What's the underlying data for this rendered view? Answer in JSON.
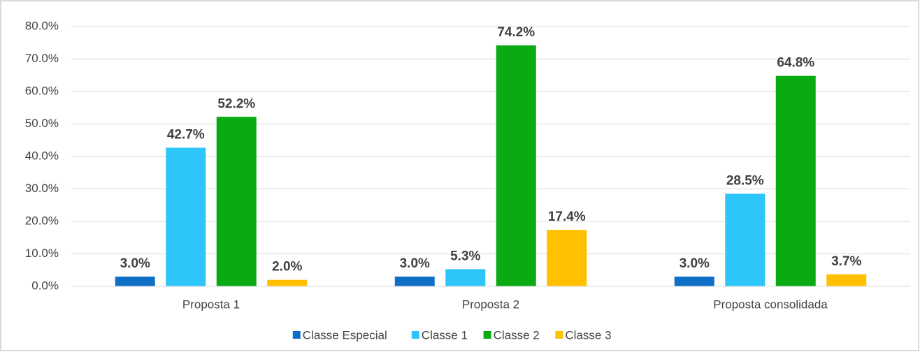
{
  "chart_data": {
    "type": "bar",
    "categories": [
      "Proposta 1",
      "Proposta 2",
      "Proposta consolidada"
    ],
    "series": [
      {
        "name": "Classe Especial",
        "color": "#0f6fc6",
        "values": [
          3.0,
          3.0,
          3.0
        ],
        "value_labels": [
          "3.0%",
          "3.0%",
          "3.0%"
        ]
      },
      {
        "name": "Classe 1",
        "color": "#2ec5fb",
        "values": [
          42.7,
          5.3,
          28.5
        ],
        "value_labels": [
          "42.7%",
          "5.3%",
          "28.5%"
        ]
      },
      {
        "name": "Classe 2",
        "color": "#0aaa12",
        "values": [
          52.2,
          74.2,
          64.8
        ],
        "value_labels": [
          "52.2%",
          "74.2%",
          "64.8%"
        ]
      },
      {
        "name": "Classe 3",
        "color": "#ffc000",
        "values": [
          2.0,
          17.4,
          3.7
        ],
        "value_labels": [
          "2.0%",
          "17.4%",
          "3.7%"
        ]
      }
    ],
    "ylim": [
      0,
      80
    ],
    "yticks": [
      {
        "value": 0,
        "label": "0.0%"
      },
      {
        "value": 10,
        "label": "10.0%"
      },
      {
        "value": 20,
        "label": "20.0%"
      },
      {
        "value": 30,
        "label": "30.0%"
      },
      {
        "value": 40,
        "label": "40.0%"
      },
      {
        "value": 50,
        "label": "50.0%"
      },
      {
        "value": 60,
        "label": "60.0%"
      },
      {
        "value": 70,
        "label": "70.0%"
      },
      {
        "value": 80,
        "label": "80.0%"
      }
    ],
    "grid": true,
    "legend": "bottom"
  }
}
